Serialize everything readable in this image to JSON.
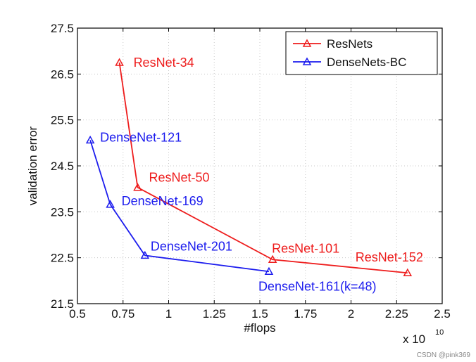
{
  "chart_data": {
    "type": "line",
    "title": "",
    "xlabel": "#flops",
    "ylabel": "validation error",
    "x_multiplier_label": "x 10",
    "x_multiplier_exponent": "10",
    "xlim": [
      0.5,
      2.5
    ],
    "ylim": [
      21.5,
      27.5
    ],
    "xticks": [
      0.5,
      0.75,
      1,
      1.25,
      1.5,
      1.75,
      2,
      2.25,
      2.5
    ],
    "xtick_labels": [
      "0.5",
      "0.75",
      "1",
      "1.25",
      "1.5",
      "1.75",
      "2",
      "2.25",
      "2.5"
    ],
    "yticks": [
      21.5,
      22.5,
      23.5,
      24.5,
      25.5,
      26.5,
      27.5
    ],
    "ytick_labels": [
      "21.5",
      "22.5",
      "23.5",
      "24.5",
      "25.5",
      "26.5",
      "27.5"
    ],
    "grid": true,
    "legend_position": "top-right",
    "series": [
      {
        "name": "ResNets",
        "color": "#ee1c1c",
        "marker": "triangle",
        "points": [
          {
            "label": "ResNet-34",
            "x": 0.73,
            "y": 26.75
          },
          {
            "label": "ResNet-50",
            "x": 0.83,
            "y": 24.03
          },
          {
            "label": "ResNet-101",
            "x": 1.57,
            "y": 22.46
          },
          {
            "label": "ResNet-152",
            "x": 2.31,
            "y": 22.17
          }
        ]
      },
      {
        "name": "DenseNets-BC",
        "color": "#1c1cee",
        "marker": "triangle",
        "points": [
          {
            "label": "DenseNet-121",
            "x": 0.57,
            "y": 25.06
          },
          {
            "label": "DenseNet-169",
            "x": 0.68,
            "y": 23.66
          },
          {
            "label": "DenseNet-201",
            "x": 0.87,
            "y": 22.55
          },
          {
            "label": "DenseNet-161(k=48)",
            "x": 1.55,
            "y": 22.2
          }
        ]
      }
    ]
  },
  "watermark": "CSDN @pink369"
}
